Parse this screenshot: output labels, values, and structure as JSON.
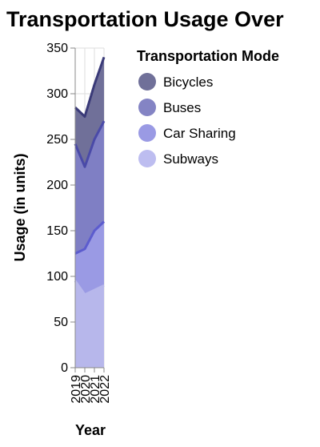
{
  "chart_data": {
    "type": "area",
    "stacked": true,
    "title": "Transportation Usage Over",
    "xlabel": "Year",
    "ylabel": "Usage (in units)",
    "ylim": [
      0,
      350
    ],
    "yticks": [
      0,
      50,
      100,
      150,
      200,
      250,
      300,
      350
    ],
    "grid": true,
    "legend_position": "right",
    "x": [
      "2019",
      "2020",
      "2021",
      "2022"
    ],
    "legend": {
      "title": "Transportation Mode",
      "items": [
        "Bicycles",
        "Buses",
        "Car Sharing",
        "Subways"
      ]
    },
    "series": [
      {
        "name": "Subways",
        "color": "#b7b7eb",
        "values": [
          95,
          80,
          85,
          90
        ]
      },
      {
        "name": "Car Sharing",
        "color": "#9a9ae4",
        "values": [
          30,
          50,
          65,
          70
        ]
      },
      {
        "name": "Buses",
        "color": "#7f7fc4",
        "values": [
          120,
          90,
          100,
          110
        ]
      },
      {
        "name": "Bicycles",
        "color": "#707099",
        "values": [
          40,
          55,
          60,
          70
        ]
      }
    ],
    "line_colors": {
      "Subways": "#b7b7eb",
      "Car Sharing": "#5c5cce",
      "Buses": "#4a4aa8",
      "Bicycles": "#3a3a78"
    },
    "legend_colors": {
      "Bicycles": "#707099",
      "Buses": "#8484c4",
      "Car Sharing": "#9a9ae4",
      "Subways": "#bdbdf0"
    }
  }
}
